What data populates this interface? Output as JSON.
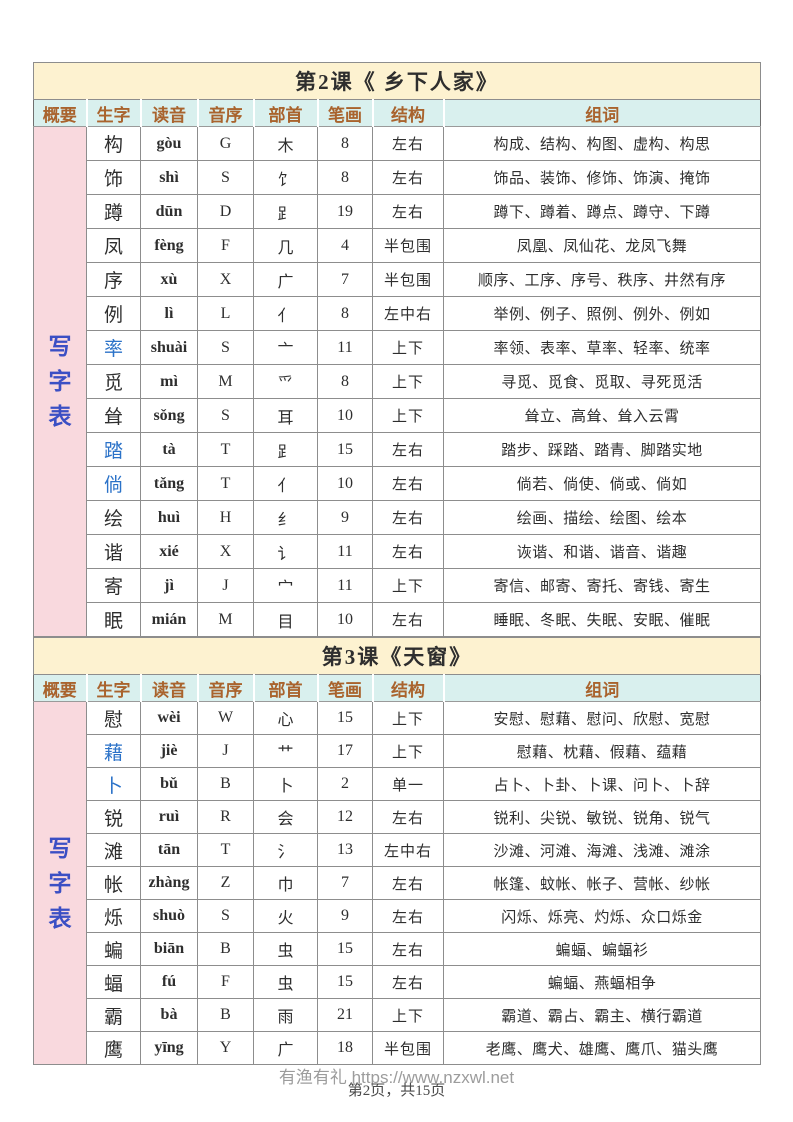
{
  "colors": {
    "title_red": "#c3272b",
    "header_brown": "#a9632d",
    "pinyin_red": "#c23a32",
    "char_blue": "#2b72c8",
    "sidebar_blue": "#3b4fc4",
    "title_band_yellow": "#fdf2d0",
    "header_cyan": "#d9f0ee",
    "summary_pink": "#f9d9de"
  },
  "columns": [
    "概要",
    "生字",
    "读音",
    "音序",
    "部首",
    "笔画",
    "结构",
    "组词"
  ],
  "sidebar_label": "写字表",
  "sidebar_chars": [
    "写",
    "字",
    "表"
  ],
  "footer": {
    "watermark": "有渔有礼 https://www.nzxwl.net",
    "page_info": "第2页，共15页"
  },
  "tables": [
    {
      "title": "第2课《 乡下人家》",
      "rows": [
        {
          "char": "构",
          "blue": false,
          "pinyin": "gòu",
          "initial": "G",
          "radical": "木",
          "strokes": "8",
          "structure": "左右",
          "words": "构成、结构、构图、虚构、构思"
        },
        {
          "char": "饰",
          "blue": false,
          "pinyin": "shì",
          "initial": "S",
          "radical": "饣",
          "strokes": "8",
          "structure": "左右",
          "words": "饰品、装饰、修饰、饰演、掩饰"
        },
        {
          "char": "蹲",
          "blue": false,
          "pinyin": "dūn",
          "initial": "D",
          "radical": "⻊",
          "strokes": "19",
          "structure": "左右",
          "words": "蹲下、蹲着、蹲点、蹲守、下蹲"
        },
        {
          "char": "凤",
          "blue": false,
          "pinyin": "fèng",
          "initial": "F",
          "radical": "几",
          "strokes": "4",
          "structure": "半包围",
          "words": "凤凰、凤仙花、龙凤飞舞"
        },
        {
          "char": "序",
          "blue": false,
          "pinyin": "xù",
          "initial": "X",
          "radical": "广",
          "strokes": "7",
          "structure": "半包围",
          "words": "顺序、工序、序号、秩序、井然有序"
        },
        {
          "char": "例",
          "blue": false,
          "pinyin": "lì",
          "initial": "L",
          "radical": "亻",
          "strokes": "8",
          "structure": "左中右",
          "words": "举例、例子、照例、例外、例如"
        },
        {
          "char": "率",
          "blue": true,
          "pinyin": "shuài",
          "initial": "S",
          "radical": "亠",
          "strokes": "11",
          "structure": "上下",
          "words": "率领、表率、草率、轻率、统率"
        },
        {
          "char": "觅",
          "blue": false,
          "pinyin": "mì",
          "initial": "M",
          "radical": "爫",
          "strokes": "8",
          "structure": "上下",
          "words": "寻觅、觅食、觅取、寻死觅活"
        },
        {
          "char": "耸",
          "blue": false,
          "pinyin": "sǒng",
          "initial": "S",
          "radical": "耳",
          "strokes": "10",
          "structure": "上下",
          "words": "耸立、高耸、耸入云霄"
        },
        {
          "char": "踏",
          "blue": true,
          "pinyin": "tà",
          "initial": "T",
          "radical": "⻊",
          "strokes": "15",
          "structure": "左右",
          "words": "踏步、踩踏、踏青、脚踏实地"
        },
        {
          "char": "倘",
          "blue": true,
          "pinyin": "tǎng",
          "initial": "T",
          "radical": "亻",
          "strokes": "10",
          "structure": "左右",
          "words": "倘若、倘使、倘或、倘如"
        },
        {
          "char": "绘",
          "blue": false,
          "pinyin": "huì",
          "initial": "H",
          "radical": "纟",
          "strokes": "9",
          "structure": "左右",
          "words": "绘画、描绘、绘图、绘本"
        },
        {
          "char": "谐",
          "blue": false,
          "pinyin": "xié",
          "initial": "X",
          "radical": "讠",
          "strokes": "11",
          "structure": "左右",
          "words": "诙谐、和谐、谐音、谐趣"
        },
        {
          "char": "寄",
          "blue": false,
          "pinyin": "jì",
          "initial": "J",
          "radical": "宀",
          "strokes": "11",
          "structure": "上下",
          "words": "寄信、邮寄、寄托、寄钱、寄生"
        },
        {
          "char": "眠",
          "blue": false,
          "pinyin": "mián",
          "initial": "M",
          "radical": "目",
          "strokes": "10",
          "structure": "左右",
          "words": "睡眠、冬眠、失眠、安眠、催眠"
        }
      ]
    },
    {
      "title": "第3课《天窗》",
      "rows": [
        {
          "char": "慰",
          "blue": false,
          "pinyin": "wèi",
          "initial": "W",
          "radical": "心",
          "strokes": "15",
          "structure": "上下",
          "words": "安慰、慰藉、慰问、欣慰、宽慰"
        },
        {
          "char": "藉",
          "blue": true,
          "pinyin": "jiè",
          "initial": "J",
          "radical": "艹",
          "strokes": "17",
          "structure": "上下",
          "words": "慰藉、枕藉、假藉、蕴藉"
        },
        {
          "char": "卜",
          "blue": true,
          "pinyin": "bǔ",
          "initial": "B",
          "radical": "卜",
          "strokes": "2",
          "structure": "单一",
          "words": "占卜、卜卦、卜课、问卜、卜辞"
        },
        {
          "char": "锐",
          "blue": false,
          "pinyin": "ruì",
          "initial": "R",
          "radical": "会",
          "strokes": "12",
          "structure": "左右",
          "words": "锐利、尖锐、敏锐、锐角、锐气"
        },
        {
          "char": "滩",
          "blue": false,
          "pinyin": "tān",
          "initial": "T",
          "radical": "氵",
          "strokes": "13",
          "structure": "左中右",
          "words": "沙滩、河滩、海滩、浅滩、滩涂"
        },
        {
          "char": "帐",
          "blue": false,
          "pinyin": "zhàng",
          "initial": "Z",
          "radical": "巾",
          "strokes": "7",
          "structure": "左右",
          "words": "帐篷、蚊帐、帐子、营帐、纱帐"
        },
        {
          "char": "烁",
          "blue": false,
          "pinyin": "shuò",
          "initial": "S",
          "radical": "火",
          "strokes": "9",
          "structure": "左右",
          "words": "闪烁、烁亮、灼烁、众口烁金"
        },
        {
          "char": "蝙",
          "blue": false,
          "pinyin": "biān",
          "initial": "B",
          "radical": "虫",
          "strokes": "15",
          "structure": "左右",
          "words": "蝙蝠、蝙蝠衫"
        },
        {
          "char": "蝠",
          "blue": false,
          "pinyin": "fú",
          "initial": "F",
          "radical": "虫",
          "strokes": "15",
          "structure": "左右",
          "words": "蝙蝠、燕蝠相争"
        },
        {
          "char": "霸",
          "blue": false,
          "pinyin": "bà",
          "initial": "B",
          "radical": "雨",
          "strokes": "21",
          "structure": "上下",
          "words": "霸道、霸占、霸主、横行霸道"
        },
        {
          "char": "鹰",
          "blue": false,
          "pinyin": "yīng",
          "initial": "Y",
          "radical": "广",
          "strokes": "18",
          "structure": "半包围",
          "words": "老鹰、鹰犬、雄鹰、鹰爪、猫头鹰"
        }
      ]
    }
  ]
}
